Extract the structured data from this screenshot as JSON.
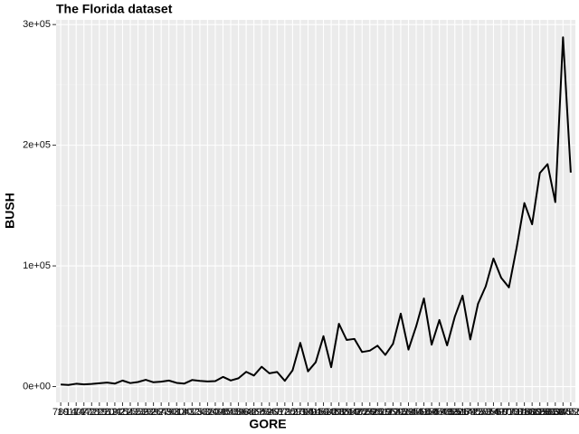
{
  "chart_data": {
    "type": "line",
    "title": "The Florida dataset",
    "x_label": "GORE",
    "y_label": "BUSH",
    "categories": [
      789,
      1017,
      1407,
      1442,
      1722,
      1826,
      1910,
      2042,
      2154,
      2155,
      2339,
      2392,
      2397,
      2649,
      2798,
      3014,
      3041,
      3075,
      3240,
      3320,
      3838,
      4084,
      4588,
      5398,
      5642,
      6868,
      6952,
      7047,
      9637,
      9735,
      12091,
      12795,
      13891,
      14152,
      14632,
      16483,
      16924,
      18850,
      19482,
      19769,
      25525,
      26619,
      28177,
      29645,
      29921,
      32644,
      36555,
      40958,
      41559,
      44648,
      47365,
      49226,
      59174,
      61425,
      69550,
      72854,
      73560,
      74977,
      97063,
      97318,
      107680,
      140115,
      166581,
      199660,
      268945,
      328702,
      386561
    ],
    "series": [
      {
        "name": "BUSH",
        "color": "#000000",
        "values": [
          1670,
          1317,
          2326,
          1841,
          2146,
          2698,
          3300,
          2448,
          4985,
          2873,
          3765,
          5610,
          3550,
          4051,
          4983,
          3038,
          2481,
          5414,
          4747,
          4256,
          4511,
          8014,
          5058,
          6858,
          12186,
          9138,
          16404,
          10964,
          12126,
          4750,
          13439,
          36248,
          12608,
          20196,
          41736,
          16059,
          52043,
          38637,
          39497,
          28627,
          29766,
          33864,
          26216,
          35426,
          60450,
          30646,
          49963,
          73029,
          34705,
          55135,
          34124,
          57948,
          75293,
          39053,
          68581,
          83100,
          106141,
          90101,
          82214,
          115185,
          152082,
          134476,
          176967,
          184312,
          152846,
          289456,
          177323
        ]
      }
    ],
    "ylim": [
      -13090,
      303863
    ],
    "yticks": [
      {
        "value": 0,
        "label": "0e+00"
      },
      {
        "value": 100000,
        "label": "1e+05"
      },
      {
        "value": 200000,
        "label": "2e+05"
      },
      {
        "value": 300000,
        "label": "3e+05"
      }
    ],
    "grid": true
  }
}
